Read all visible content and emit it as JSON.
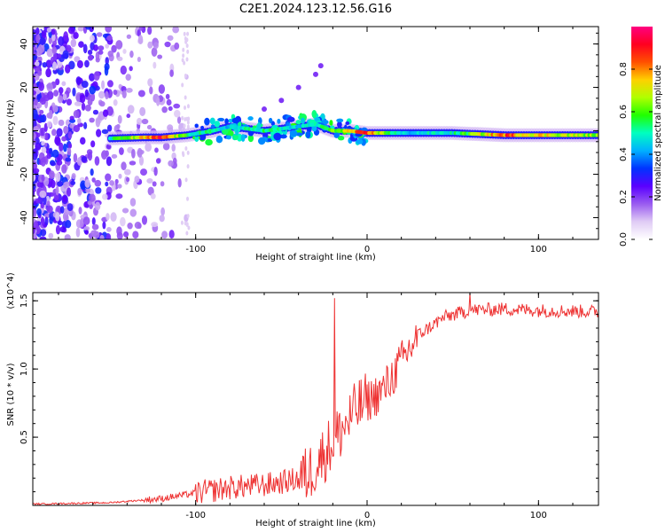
{
  "title": "C2E1.2024.123.12.56.G16",
  "chart_data": [
    {
      "type": "heatmap",
      "xlabel": "Height of straight line (km)",
      "ylabel": "Frequency (Hz)",
      "xlim": [
        -195,
        135
      ],
      "ylim": [
        -50,
        48
      ],
      "xticks": [
        -100,
        0,
        100
      ],
      "xtick_labels": [
        "-100",
        "0",
        "100"
      ],
      "yticks": [
        -40,
        -20,
        0,
        20,
        40
      ],
      "ytick_labels": [
        "-40",
        "-20",
        "0",
        "20",
        "40"
      ],
      "colorbar": {
        "label": "Normalized spectral amplitude",
        "ticks": [
          "0.0",
          "0.2",
          "0.4",
          "0.6",
          "0.8"
        ],
        "range": [
          0,
          1
        ],
        "colormap": [
          "#ffffff",
          "#e0ccf5",
          "#9a5cf0",
          "#5a00ff",
          "#0033ff",
          "#00b0ff",
          "#00ffc0",
          "#20ff00",
          "#b0ff00",
          "#ffd000",
          "#ff5000",
          "#ff0020",
          "#ff0080"
        ]
      },
      "ridge": [
        {
          "x": -150,
          "f": -3.5,
          "a": 0.5
        },
        {
          "x": -130,
          "f": -3,
          "a": 0.75
        },
        {
          "x": -120,
          "f": -3,
          "a": 0.9
        },
        {
          "x": -105,
          "f": -2,
          "a": 0.55
        },
        {
          "x": -90,
          "f": 0,
          "a": 0.5
        },
        {
          "x": -80,
          "f": 2,
          "a": 0.45
        },
        {
          "x": -70,
          "f": 1,
          "a": 0.5
        },
        {
          "x": -60,
          "f": 0,
          "a": 0.55
        },
        {
          "x": -50,
          "f": 1,
          "a": 0.5
        },
        {
          "x": -40,
          "f": 2,
          "a": 0.45
        },
        {
          "x": -30,
          "f": 3,
          "a": 0.5
        },
        {
          "x": -20,
          "f": 0,
          "a": 0.6
        },
        {
          "x": -10,
          "f": 0,
          "a": 0.75
        },
        {
          "x": 0,
          "f": -1,
          "a": 0.85
        },
        {
          "x": 20,
          "f": -1,
          "a": 0.45
        },
        {
          "x": 50,
          "f": -1,
          "a": 0.5
        },
        {
          "x": 80,
          "f": -2,
          "a": 0.85
        },
        {
          "x": 100,
          "f": -2,
          "a": 0.75
        },
        {
          "x": 130,
          "f": -2,
          "a": 0.65
        }
      ],
      "branch": [
        {
          "x": -60,
          "f": 10
        },
        {
          "x": -50,
          "f": 14
        },
        {
          "x": -40,
          "f": 20
        },
        {
          "x": -30,
          "f": 26
        },
        {
          "x": -27,
          "f": 30
        }
      ]
    },
    {
      "type": "line",
      "xlabel": "Height of straight line (km)",
      "ylabel": "SNR (10 * v/v)",
      "y_multiplier": "(x10^4)",
      "xlim": [
        -195,
        135
      ],
      "ylim": [
        0,
        1.56
      ],
      "xticks": [
        -100,
        0,
        100
      ],
      "xtick_labels": [
        "-100",
        "0",
        "100"
      ],
      "yticks": [
        0.5,
        1.0,
        1.5
      ],
      "ytick_labels": [
        "0.5",
        "1.0",
        "1.5"
      ],
      "color": "#ee3333",
      "trend": [
        {
          "x": -195,
          "y": 0.01
        },
        {
          "x": -150,
          "y": 0.02
        },
        {
          "x": -120,
          "y": 0.05
        },
        {
          "x": -100,
          "y": 0.09
        },
        {
          "x": -80,
          "y": 0.13
        },
        {
          "x": -60,
          "y": 0.15
        },
        {
          "x": -45,
          "y": 0.18
        },
        {
          "x": -35,
          "y": 0.22
        },
        {
          "x": -25,
          "y": 0.38
        },
        {
          "x": -15,
          "y": 0.55
        },
        {
          "x": -5,
          "y": 0.72
        },
        {
          "x": 10,
          "y": 0.85
        },
        {
          "x": 20,
          "y": 1.05
        },
        {
          "x": 30,
          "y": 1.25
        },
        {
          "x": 45,
          "y": 1.38
        },
        {
          "x": 60,
          "y": 1.43
        },
        {
          "x": 80,
          "y": 1.44
        },
        {
          "x": 100,
          "y": 1.43
        },
        {
          "x": 135,
          "y": 1.42
        }
      ],
      "spikes": [
        {
          "x": -19,
          "y": 1.52
        },
        {
          "x": 60,
          "y": 1.56
        }
      ]
    }
  ]
}
